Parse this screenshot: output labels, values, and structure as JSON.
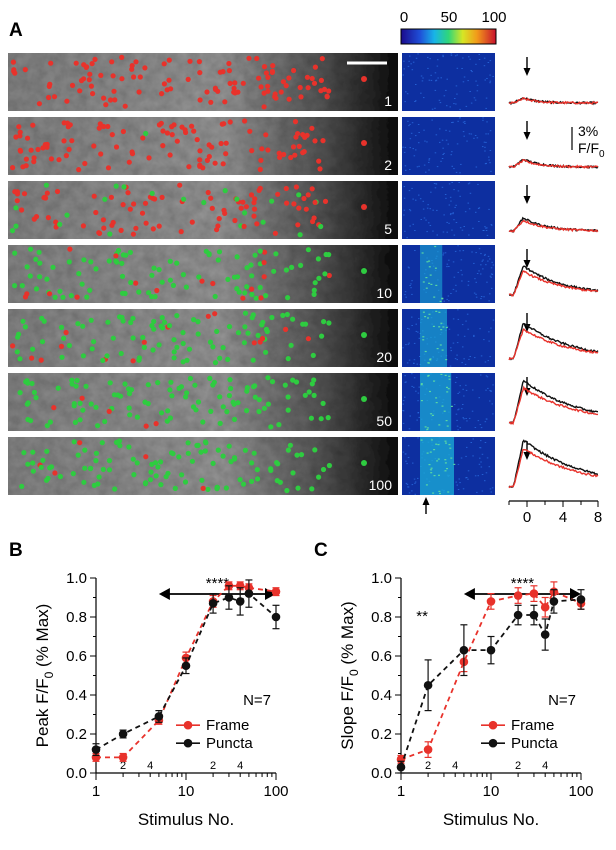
{
  "figure": {
    "panel_labels": {
      "a": "A",
      "b": "B",
      "c": "C"
    },
    "colorbar": {
      "ticks": [
        "0",
        "50",
        "100"
      ]
    },
    "rows": [
      {
        "label": "1",
        "response": 0.02,
        "red_frac": 1.0
      },
      {
        "label": "2",
        "response": 0.08,
        "red_frac": 0.97
      },
      {
        "label": "5",
        "response": 0.2,
        "red_frac": 0.8
      },
      {
        "label": "10",
        "response": 0.58,
        "red_frac": 0.15
      },
      {
        "label": "20",
        "response": 0.75,
        "red_frac": 0.1
      },
      {
        "label": "50",
        "response": 0.9,
        "red_frac": 0.05
      },
      {
        "label": "100",
        "response": 1.0,
        "red_frac": 0.04
      }
    ],
    "trace_axis": {
      "ticks": [
        "0",
        "4",
        "8"
      ]
    },
    "scale_bar": {
      "line1": "3%",
      "line2_main": "F/F",
      "line2_sub": "0"
    },
    "colors": {
      "frame": "#e8322b",
      "puncta": "#111111",
      "dot_green": "#2ecc40",
      "dot_red": "#e8322b"
    }
  },
  "chart_data": [
    {
      "type": "line",
      "panel": "B",
      "xscale": "log",
      "xlim": [
        1,
        100
      ],
      "ylim": [
        0,
        1.0
      ],
      "xticks": [
        "1",
        "10",
        "100"
      ],
      "yticks": [
        "0.0",
        "0.2",
        "0.4",
        "0.6",
        "0.8",
        "1.0"
      ],
      "xlabel": "Stimulus No.",
      "ylabel_main": "Peak F/F",
      "ylabel_sub": "0",
      "ylabel_tail": " (% Max)",
      "n_label": "N=7",
      "significance": "****",
      "legend": [
        "Frame",
        "Puncta"
      ],
      "series": [
        {
          "name": "Frame",
          "color": "#e8322b",
          "x": [
            1,
            2,
            5,
            10,
            20,
            30,
            40,
            50,
            100
          ],
          "y": [
            0.08,
            0.08,
            0.27,
            0.59,
            0.88,
            0.96,
            0.96,
            0.95,
            0.93
          ],
          "err": [
            0.02,
            0.02,
            0.02,
            0.03,
            0.03,
            0.02,
            0.02,
            0.02,
            0.02
          ]
        },
        {
          "name": "Puncta",
          "color": "#111111",
          "x": [
            1,
            2,
            5,
            10,
            20,
            30,
            40,
            50,
            100
          ],
          "y": [
            0.12,
            0.2,
            0.29,
            0.55,
            0.87,
            0.9,
            0.88,
            0.92,
            0.8
          ],
          "err": [
            0.03,
            0.02,
            0.03,
            0.04,
            0.05,
            0.06,
            0.07,
            0.07,
            0.06
          ]
        }
      ]
    },
    {
      "type": "line",
      "panel": "C",
      "xscale": "log",
      "xlim": [
        1,
        100
      ],
      "ylim": [
        0,
        1.0
      ],
      "xticks": [
        "1",
        "10",
        "100"
      ],
      "yticks": [
        "0.0",
        "0.2",
        "0.4",
        "0.6",
        "0.8",
        "1.0"
      ],
      "xlabel": "Stimulus No.",
      "ylabel_main": "Slope F/F",
      "ylabel_sub": "0",
      "ylabel_tail": " (% Max)",
      "n_label": "N=7",
      "significance": "****",
      "significance2": "**",
      "legend": [
        "Frame",
        "Puncta"
      ],
      "series": [
        {
          "name": "Frame",
          "color": "#e8322b",
          "x": [
            1,
            2,
            5,
            10,
            20,
            30,
            40,
            50,
            100
          ],
          "y": [
            0.07,
            0.12,
            0.57,
            0.88,
            0.91,
            0.92,
            0.85,
            0.93,
            0.87
          ],
          "err": [
            0.02,
            0.04,
            0.05,
            0.04,
            0.04,
            0.04,
            0.05,
            0.05,
            0.03
          ]
        },
        {
          "name": "Puncta",
          "color": "#111111",
          "x": [
            1,
            2,
            5,
            10,
            20,
            30,
            40,
            50,
            100
          ],
          "y": [
            0.03,
            0.45,
            0.63,
            0.63,
            0.81,
            0.81,
            0.71,
            0.88,
            0.89
          ],
          "err": [
            0.03,
            0.13,
            0.13,
            0.07,
            0.05,
            0.05,
            0.08,
            0.06,
            0.05
          ]
        }
      ]
    }
  ]
}
